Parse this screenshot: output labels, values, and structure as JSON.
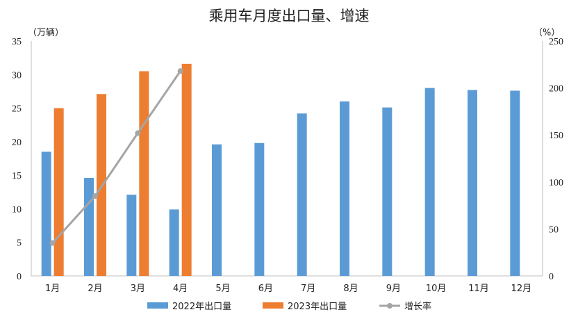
{
  "chart_data": {
    "type": "bar",
    "title": "乘用车月度出口量、增速",
    "categories": [
      "1月",
      "2月",
      "3月",
      "4月",
      "5月",
      "6月",
      "7月",
      "8月",
      "9月",
      "10月",
      "11月",
      "12月"
    ],
    "y_left_unit": "（万辆）",
    "y_right_unit": "（%）",
    "y_left_ticks": [
      "0",
      "5",
      "10",
      "15",
      "20",
      "25",
      "30",
      "35"
    ],
    "y_right_ticks": [
      "0",
      "50",
      "100",
      "150",
      "200",
      "250"
    ],
    "ylim_left": [
      0,
      35
    ],
    "ylim_right": [
      0,
      250
    ],
    "series": [
      {
        "name": "2022年出口量",
        "type": "bar",
        "axis": "left",
        "color": "#5B9BD5",
        "values": [
          18.5,
          14.6,
          12.1,
          9.9,
          19.6,
          19.8,
          24.2,
          26.0,
          25.1,
          28.0,
          27.7,
          27.6
        ]
      },
      {
        "name": "2023年出口量",
        "type": "bar",
        "axis": "left",
        "color": "#ED7D31",
        "values": [
          25.0,
          27.1,
          30.5,
          31.6,
          null,
          null,
          null,
          null,
          null,
          null,
          null,
          null
        ]
      },
      {
        "name": "增长率",
        "type": "line",
        "axis": "right",
        "color": "#A5A5A5",
        "values": [
          35,
          85,
          152,
          218,
          null,
          null,
          null,
          null,
          null,
          null,
          null,
          null
        ]
      }
    ],
    "legend_position": "bottom",
    "grid": false
  }
}
